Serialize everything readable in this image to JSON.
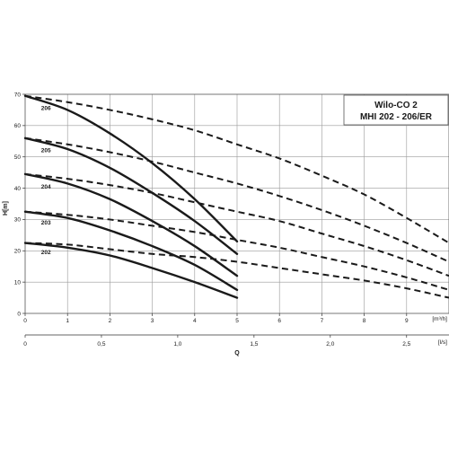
{
  "chart_data": {
    "type": "line",
    "title_lines": [
      "Wilo-CO 2",
      "MHI 202 - 206/ER"
    ],
    "ylabel": "H[m]",
    "xlabel": "Q",
    "x_unit_primary": "[m³/h]",
    "x_unit_secondary": "[l/s]",
    "xlim": [
      0,
      10
    ],
    "ylim": [
      0,
      70
    ],
    "secondary_xlim": [
      0,
      2.778
    ],
    "x_ticks": [
      0,
      1,
      2,
      3,
      4,
      5,
      6,
      7,
      8,
      9
    ],
    "y_ticks": [
      0,
      10,
      20,
      30,
      40,
      50,
      60,
      70
    ],
    "secondary_ticks": [
      {
        "value": 0,
        "label": "0"
      },
      {
        "value": 0.5,
        "label": "0,5"
      },
      {
        "value": 1.0,
        "label": "1,0"
      },
      {
        "value": 1.5,
        "label": "1,5"
      },
      {
        "value": 2.0,
        "label": "2,0"
      },
      {
        "value": 2.5,
        "label": "2,5"
      }
    ],
    "grid": true,
    "series": [
      {
        "name": "206",
        "style": "solid",
        "label_at": [
          0.25,
          65.5
        ],
        "x": [
          0,
          1,
          2,
          3,
          4,
          5
        ],
        "y": [
          69.5,
          65,
          57.5,
          48,
          36.5,
          23
        ]
      },
      {
        "name": "205",
        "style": "solid",
        "label_at": [
          0.25,
          52
        ],
        "x": [
          0,
          1,
          2,
          3,
          4,
          5
        ],
        "y": [
          56,
          52.5,
          46.5,
          38.5,
          29.5,
          19
        ]
      },
      {
        "name": "204",
        "style": "solid",
        "label_at": [
          0.25,
          40.5
        ],
        "x": [
          0,
          1,
          2,
          3,
          4,
          5
        ],
        "y": [
          44.5,
          41.5,
          36.5,
          29.5,
          21.5,
          12
        ]
      },
      {
        "name": "203",
        "style": "solid",
        "label_at": [
          0.25,
          29
        ],
        "x": [
          0,
          1,
          2,
          3,
          4,
          5
        ],
        "y": [
          32.5,
          30.5,
          26.5,
          21.5,
          15.5,
          7.5
        ]
      },
      {
        "name": "202",
        "style": "solid",
        "label_at": [
          0.25,
          19.5
        ],
        "x": [
          0,
          1,
          2,
          3,
          4,
          5
        ],
        "y": [
          22.5,
          21,
          18.5,
          14.5,
          10,
          5
        ]
      },
      {
        "style": "dashed",
        "x": [
          0,
          1,
          2,
          3,
          4,
          5,
          6,
          7,
          8,
          9,
          10
        ],
        "y": [
          69.5,
          67.5,
          65,
          62,
          58.5,
          54,
          49.5,
          44,
          38,
          30.5,
          22.5
        ]
      },
      {
        "style": "dashed",
        "x": [
          0,
          1,
          2,
          3,
          4,
          5,
          6,
          7,
          8,
          9,
          10
        ],
        "y": [
          56,
          54,
          51.5,
          48.5,
          45,
          41.5,
          37.5,
          33,
          28,
          22.5,
          16.5
        ]
      },
      {
        "style": "dashed",
        "x": [
          0,
          1,
          2,
          3,
          4,
          5,
          6,
          7,
          8,
          9,
          10
        ],
        "y": [
          44.5,
          43,
          41,
          38.5,
          35.5,
          32.5,
          29.5,
          25.5,
          21.5,
          17,
          12
        ]
      },
      {
        "style": "dashed",
        "x": [
          0,
          1,
          2,
          3,
          4,
          5,
          6,
          7,
          8,
          9,
          10
        ],
        "y": [
          32.5,
          31.5,
          30,
          28,
          26,
          23.5,
          21,
          18,
          15,
          11.5,
          7.5
        ]
      },
      {
        "style": "dashed",
        "x": [
          0,
          1,
          2,
          3,
          4,
          5,
          6,
          7,
          8,
          9,
          10
        ],
        "y": [
          22.5,
          22,
          20.5,
          19,
          18,
          16.5,
          14.5,
          12.5,
          10.5,
          8,
          5
        ]
      }
    ]
  }
}
